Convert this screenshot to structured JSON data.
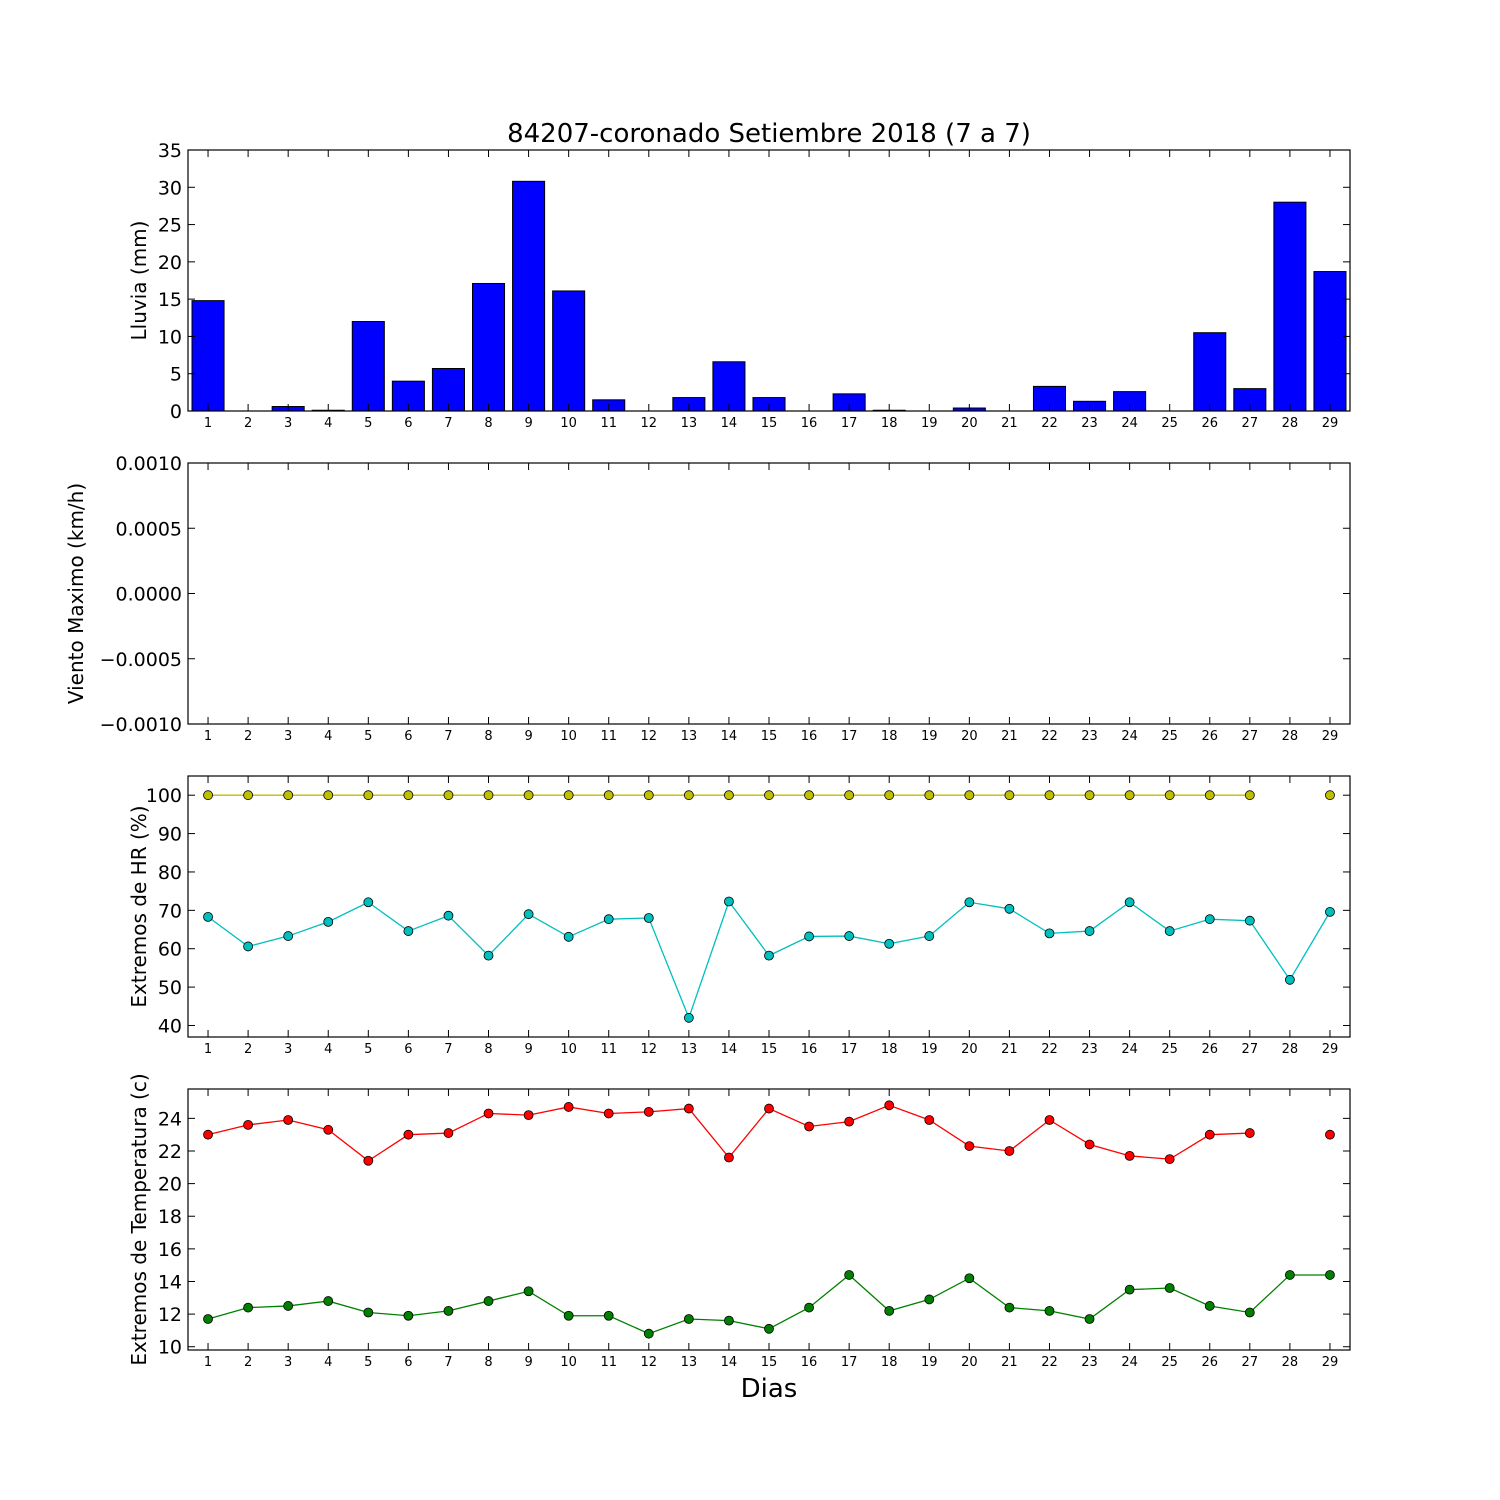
{
  "chart_data": {
    "title": "84207-coronado Setiembre 2018  (7 a 7)",
    "xlabel": "Dias",
    "days": [
      1,
      2,
      3,
      4,
      5,
      6,
      7,
      8,
      9,
      10,
      11,
      12,
      13,
      14,
      15,
      16,
      17,
      18,
      19,
      20,
      21,
      22,
      23,
      24,
      25,
      26,
      27,
      28,
      29
    ],
    "panels": [
      {
        "id": "lluvia",
        "type": "bar",
        "ylabel": "Lluvia (mm)",
        "ylim": [
          0,
          35
        ],
        "yticks": [
          0,
          5,
          10,
          15,
          20,
          25,
          30,
          35
        ],
        "ytick_labels": [
          "0",
          "5",
          "10",
          "15",
          "20",
          "25",
          "30",
          "35"
        ],
        "series": [
          {
            "color": "#0000ff",
            "values": [
              14.8,
              0,
              0.6,
              0.1,
              12.0,
              4.0,
              5.7,
              17.1,
              30.8,
              16.1,
              1.5,
              0,
              1.8,
              6.6,
              1.8,
              0,
              2.3,
              0.1,
              0,
              0.4,
              0,
              3.3,
              1.3,
              2.6,
              0,
              10.5,
              3.0,
              28.0,
              18.7
            ]
          }
        ]
      },
      {
        "id": "viento",
        "type": "line",
        "ylabel": "Viento Maximo (km/h)",
        "ylim": [
          -0.001,
          0.001
        ],
        "yticks": [
          -0.001,
          -0.0005,
          0,
          0.0005,
          0.001
        ],
        "ytick_labels": [
          "−0.0010",
          "−0.0005",
          "0.0000",
          "0.0005",
          "0.0010"
        ],
        "series": []
      },
      {
        "id": "hr",
        "type": "line",
        "ylabel": "Extremos de HR (%)",
        "ylim": [
          37,
          105
        ],
        "yticks": [
          40,
          50,
          60,
          70,
          80,
          90,
          100
        ],
        "ytick_labels": [
          "40",
          "50",
          "60",
          "70",
          "80",
          "90",
          "100"
        ],
        "series": [
          {
            "color": "#bfbf00",
            "values": [
              100,
              100,
              100,
              100,
              100,
              100,
              100,
              100,
              100,
              100,
              100,
              100,
              100,
              100,
              100,
              100,
              100,
              100,
              100,
              100,
              100,
              100,
              100,
              100,
              100,
              100,
              100,
              null,
              100
            ]
          },
          {
            "color": "#00bfbf",
            "values": [
              68.3,
              60.6,
              63.3,
              67.0,
              72.1,
              64.6,
              68.6,
              58.2,
              69.0,
              63.1,
              67.7,
              68.0,
              42.0,
              72.3,
              58.2,
              63.2,
              63.3,
              61.3,
              63.3,
              72.1,
              70.4,
              64.0,
              64.6,
              72.1,
              64.6,
              67.7,
              67.3,
              51.9,
              69.6
            ]
          }
        ]
      },
      {
        "id": "temp",
        "type": "line",
        "ylabel": "Extremos de Temperatura (c)",
        "ylim": [
          9.8,
          25.8
        ],
        "yticks": [
          10,
          12,
          14,
          16,
          18,
          20,
          22,
          24
        ],
        "ytick_labels": [
          "10",
          "12",
          "14",
          "16",
          "18",
          "20",
          "22",
          "24"
        ],
        "series": [
          {
            "color": "#ff0000",
            "values": [
              23.0,
              23.6,
              23.9,
              23.3,
              21.4,
              23.0,
              23.1,
              24.3,
              24.2,
              24.7,
              24.3,
              24.4,
              24.6,
              21.6,
              24.6,
              23.5,
              23.8,
              24.8,
              23.9,
              22.3,
              22.0,
              23.9,
              22.4,
              21.7,
              21.5,
              23.0,
              23.1,
              null,
              23.0
            ]
          },
          {
            "color": "#008000",
            "values": [
              11.7,
              12.4,
              12.5,
              12.8,
              12.1,
              11.9,
              12.2,
              12.8,
              13.4,
              11.9,
              11.9,
              10.8,
              11.7,
              11.6,
              11.1,
              12.4,
              14.4,
              12.2,
              12.9,
              14.2,
              12.4,
              12.2,
              11.7,
              13.5,
              13.6,
              12.5,
              12.1,
              14.4,
              14.4
            ]
          }
        ]
      }
    ]
  }
}
